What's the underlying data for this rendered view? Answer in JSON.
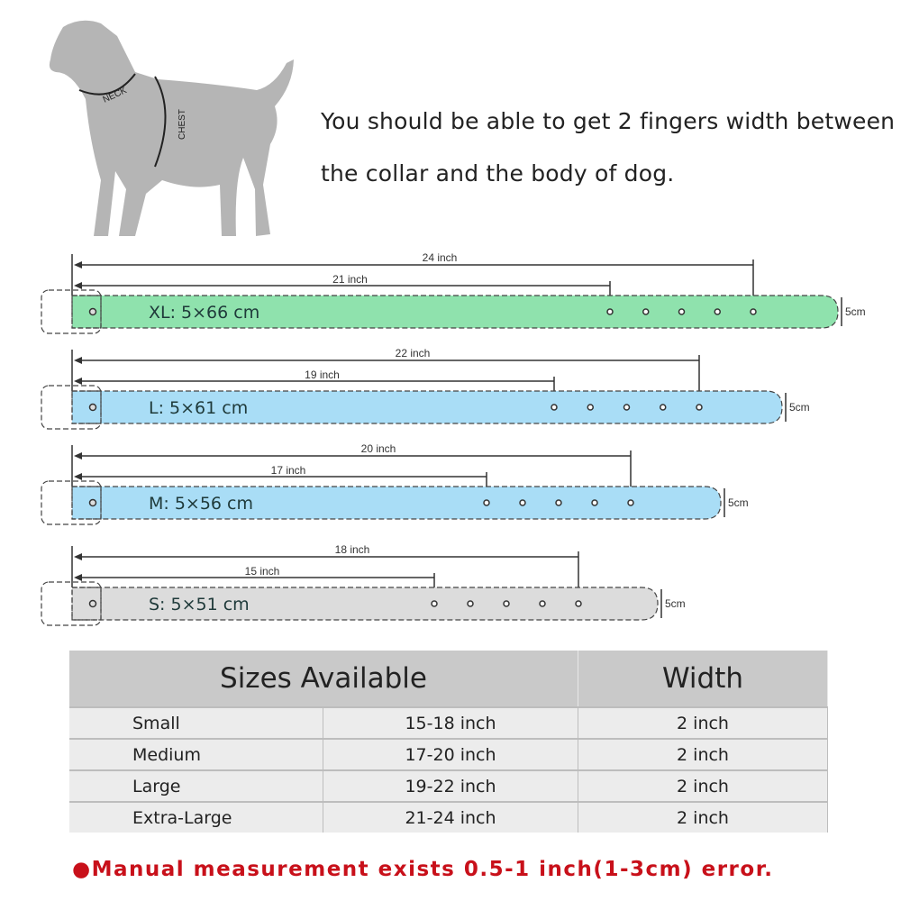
{
  "dog": {
    "neck_label": "NECK",
    "chest_label": "CHEST"
  },
  "tip": {
    "line1": "You should be able to get 2 fingers width between",
    "line2": "the collar and the body of dog."
  },
  "collars": [
    {
      "label": "XL: 5×66 cm",
      "outer": "24 inch",
      "inner": "21  inch",
      "width": "5cm",
      "outer_in": 24,
      "inner_in": 21,
      "color": "#8fe2ad"
    },
    {
      "label": "L: 5×61 cm",
      "outer": "22 inch",
      "inner": "19 inch",
      "width": "5cm",
      "outer_in": 22,
      "inner_in": 19,
      "color": "#a9ddf6"
    },
    {
      "label": "M: 5×56 cm",
      "outer": "20 inch",
      "inner": "17 inch",
      "width": "5cm",
      "outer_in": 20,
      "inner_in": 17,
      "color": "#a9ddf6"
    },
    {
      "label": "S: 5×51 cm",
      "outer": "18 inch",
      "inner": "15 inch",
      "width": "5cm",
      "outer_in": 18,
      "inner_in": 15,
      "color": "#dcdcdc"
    }
  ],
  "table": {
    "headers": [
      "Sizes Available",
      "Width"
    ],
    "rows": [
      {
        "size": "Small",
        "range": "15-18  inch",
        "width": "2 inch"
      },
      {
        "size": "Medium",
        "range": "17-20  inch",
        "width": "2 inch"
      },
      {
        "size": "Large",
        "range": "19-22  inch",
        "width": "2 inch"
      },
      {
        "size": "Extra-Large",
        "range": "21-24  inch",
        "width": "2 inch"
      }
    ]
  },
  "note": "●Manual measurement exists 0.5-1 inch(1-3cm) error."
}
